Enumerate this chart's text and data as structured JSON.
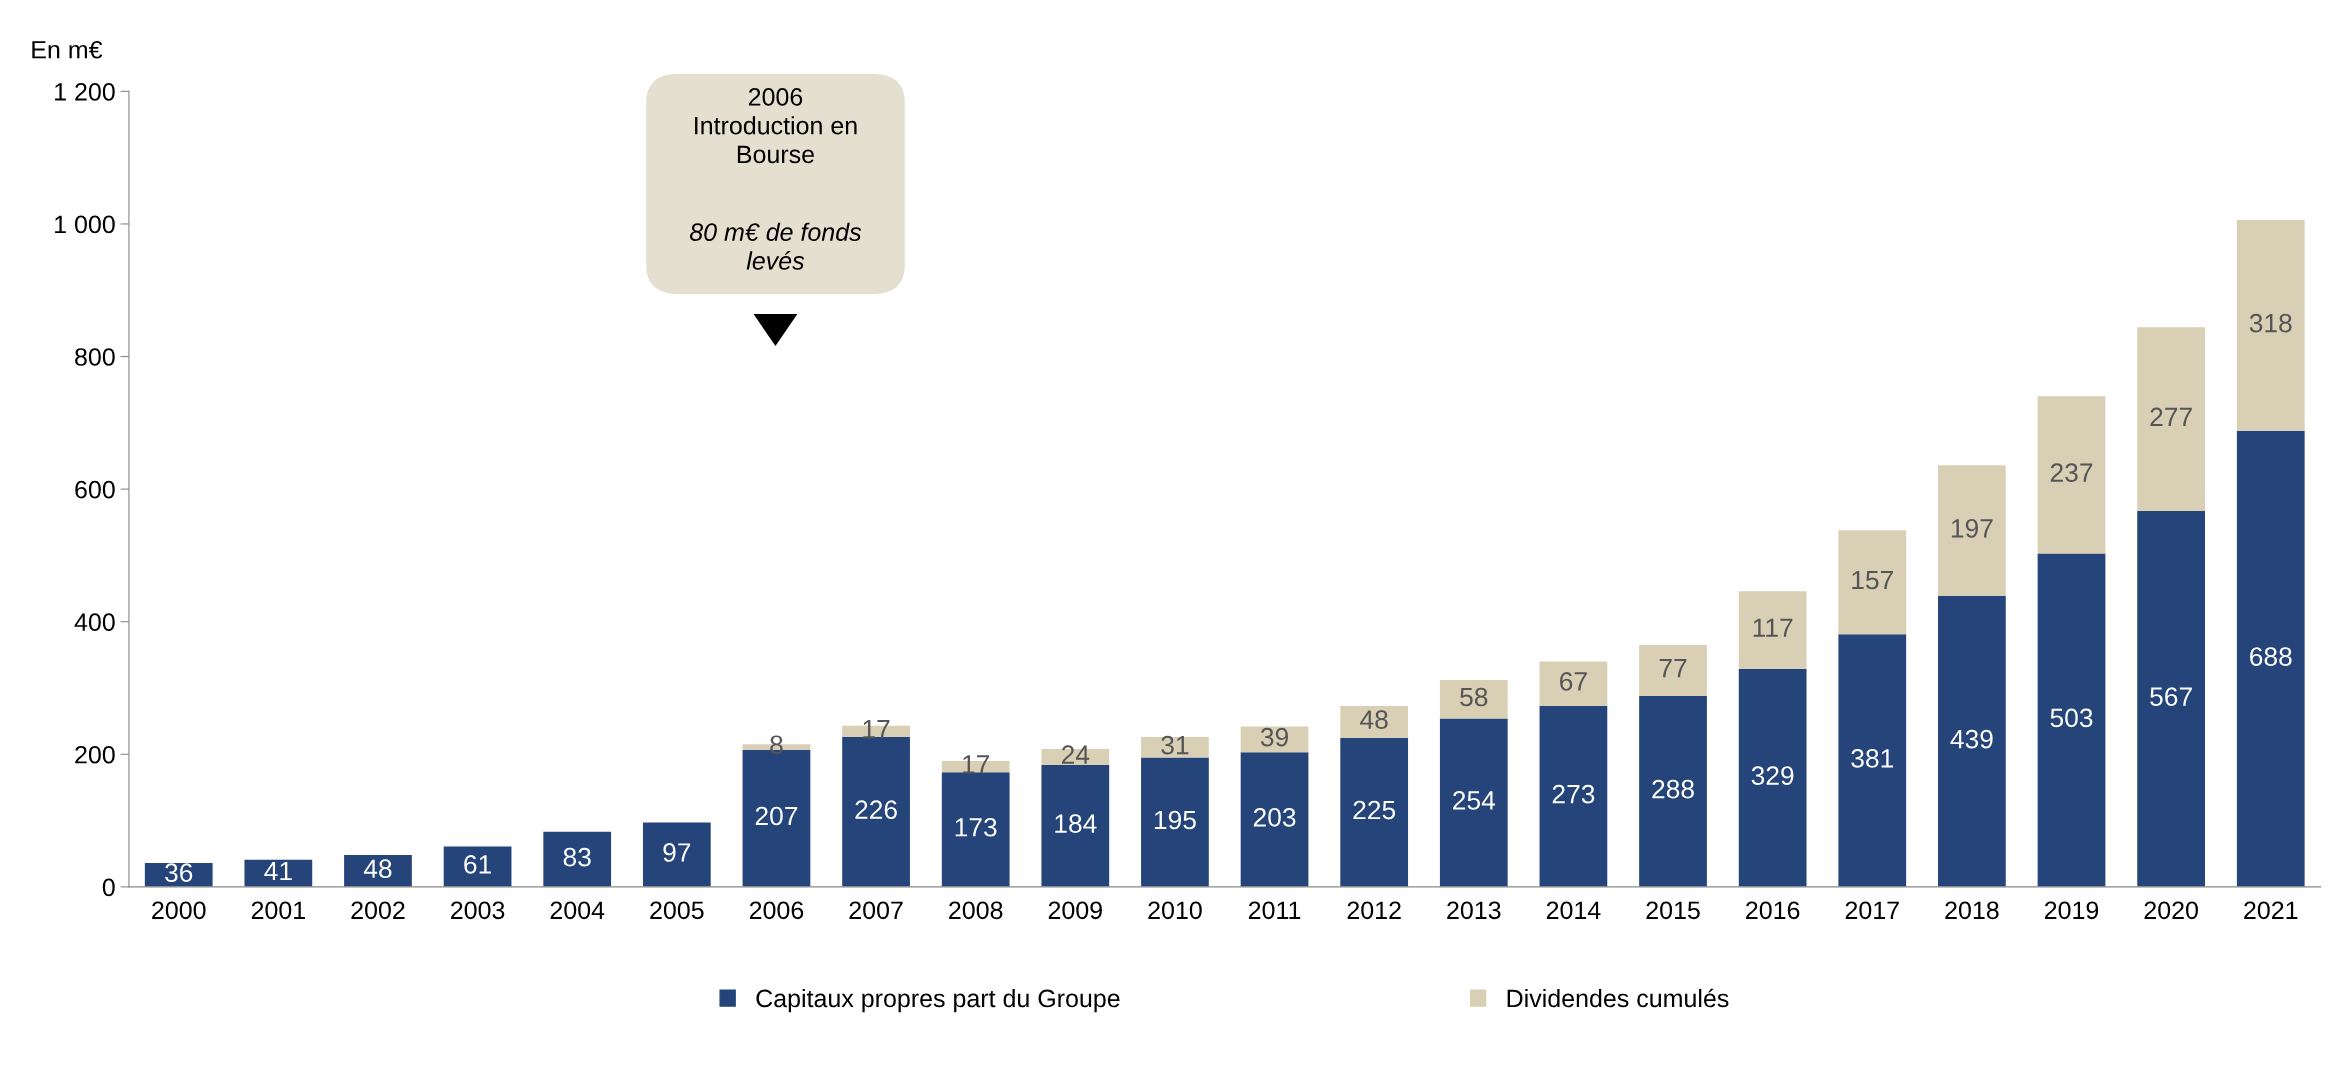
{
  "chart_data": {
    "type": "bar",
    "stacked": true,
    "ylabel": "En m€",
    "categories": [
      "2000",
      "2001",
      "2002",
      "2003",
      "2004",
      "2005",
      "2006",
      "2007",
      "2008",
      "2009",
      "2010",
      "2011",
      "2012",
      "2013",
      "2014",
      "2015",
      "2016",
      "2017",
      "2018",
      "2019",
      "2020",
      "2021"
    ],
    "series": [
      {
        "name": "Capitaux propres part du Groupe",
        "color": "#25447a",
        "values": [
          36,
          41,
          48,
          61,
          83,
          97,
          207,
          226,
          173,
          184,
          195,
          203,
          225,
          254,
          273,
          288,
          329,
          381,
          439,
          503,
          567,
          688
        ]
      },
      {
        "name": "Dividendes cumulés",
        "color": "#d9cfb5",
        "values": [
          null,
          null,
          null,
          null,
          null,
          null,
          8,
          17,
          17,
          24,
          31,
          39,
          48,
          58,
          67,
          77,
          117,
          157,
          197,
          237,
          277,
          318
        ]
      }
    ],
    "ylim": [
      0,
      1200
    ],
    "yticks": [
      0,
      200,
      400,
      600,
      800,
      {
        "value": 1000,
        "label": "1 000"
      },
      {
        "value": 1200,
        "label": "1 200"
      }
    ],
    "data_labels": true,
    "grid": false,
    "legend": "bottom",
    "annotations": [
      "2006\nIntroduction en\nBourse",
      "80 m€ de fonds\nlevés"
    ]
  }
}
